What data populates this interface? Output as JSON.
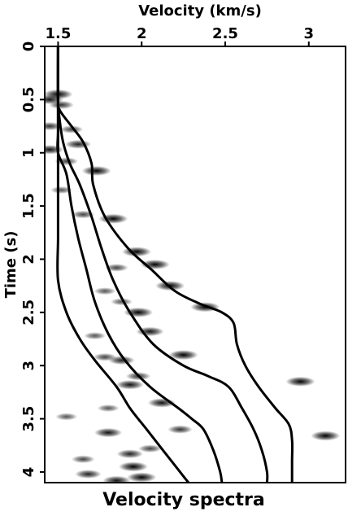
{
  "chart_data": {
    "type": "heatmap",
    "title": "Velocity spectra",
    "xlabel": "Velocity (km/s)",
    "ylabel": "Time (s)",
    "x_axis_position": "top",
    "y_axis_inverted": true,
    "xlim": [
      1.42,
      3.22
    ],
    "ylim": [
      0,
      4.1
    ],
    "xticks": [
      1.5,
      2,
      2.5,
      3
    ],
    "xtick_labels": [
      "1.5",
      "2",
      "2.5",
      "3"
    ],
    "yticks": [
      0,
      0.5,
      1,
      1.5,
      2,
      2.5,
      3,
      3.5,
      4
    ],
    "ytick_labels": [
      "0",
      "0.5",
      "1",
      "1.5",
      "2",
      "2.5",
      "3",
      "3.5",
      "4"
    ],
    "grid": false,
    "colormap": "white-to-black (semblance)",
    "semblance_peaks": [
      {
        "t": 0.45,
        "v": 1.5,
        "amp": 1.0
      },
      {
        "t": 0.5,
        "v": 1.45,
        "amp": 0.9
      },
      {
        "t": 0.55,
        "v": 1.52,
        "amp": 0.7
      },
      {
        "t": 0.75,
        "v": 1.45,
        "amp": 0.7
      },
      {
        "t": 0.78,
        "v": 1.58,
        "amp": 0.6
      },
      {
        "t": 0.92,
        "v": 1.62,
        "amp": 0.8
      },
      {
        "t": 0.97,
        "v": 1.45,
        "amp": 0.9
      },
      {
        "t": 1.08,
        "v": 1.55,
        "amp": 0.6
      },
      {
        "t": 1.17,
        "v": 1.73,
        "amp": 1.0
      },
      {
        "t": 1.35,
        "v": 1.52,
        "amp": 0.5
      },
      {
        "t": 1.58,
        "v": 1.65,
        "amp": 0.6
      },
      {
        "t": 1.62,
        "v": 1.83,
        "amp": 1.0
      },
      {
        "t": 1.93,
        "v": 1.97,
        "amp": 1.0
      },
      {
        "t": 2.05,
        "v": 2.08,
        "amp": 1.0
      },
      {
        "t": 2.08,
        "v": 1.85,
        "amp": 0.6
      },
      {
        "t": 2.25,
        "v": 2.17,
        "amp": 1.0
      },
      {
        "t": 2.3,
        "v": 1.78,
        "amp": 0.5
      },
      {
        "t": 2.4,
        "v": 1.88,
        "amp": 0.5
      },
      {
        "t": 2.45,
        "v": 2.38,
        "amp": 1.0
      },
      {
        "t": 2.5,
        "v": 1.98,
        "amp": 1.0
      },
      {
        "t": 2.68,
        "v": 2.05,
        "amp": 0.9
      },
      {
        "t": 2.72,
        "v": 1.72,
        "amp": 0.5
      },
      {
        "t": 2.9,
        "v": 2.25,
        "amp": 1.0
      },
      {
        "t": 2.92,
        "v": 1.78,
        "amp": 0.6
      },
      {
        "t": 2.95,
        "v": 1.88,
        "amp": 0.8
      },
      {
        "t": 3.1,
        "v": 1.98,
        "amp": 0.7
      },
      {
        "t": 3.15,
        "v": 2.95,
        "amp": 1.0
      },
      {
        "t": 3.18,
        "v": 1.93,
        "amp": 0.9
      },
      {
        "t": 3.35,
        "v": 2.12,
        "amp": 0.9
      },
      {
        "t": 3.4,
        "v": 1.8,
        "amp": 0.5
      },
      {
        "t": 3.48,
        "v": 1.55,
        "amp": 0.5
      },
      {
        "t": 3.6,
        "v": 2.23,
        "amp": 0.7
      },
      {
        "t": 3.63,
        "v": 1.8,
        "amp": 0.9
      },
      {
        "t": 3.66,
        "v": 3.1,
        "amp": 1.0
      },
      {
        "t": 3.78,
        "v": 2.05,
        "amp": 0.6
      },
      {
        "t": 3.83,
        "v": 1.93,
        "amp": 0.8
      },
      {
        "t": 3.88,
        "v": 1.65,
        "amp": 0.6
      },
      {
        "t": 3.95,
        "v": 1.95,
        "amp": 1.0
      },
      {
        "t": 4.02,
        "v": 1.68,
        "amp": 0.8
      },
      {
        "t": 4.05,
        "v": 2.0,
        "amp": 1.0
      },
      {
        "t": 4.08,
        "v": 1.85,
        "amp": 0.9
      }
    ],
    "series": [
      {
        "points": [
          [
            0,
            1.5
          ],
          [
            0.5,
            1.5
          ],
          [
            1.0,
            1.5
          ],
          [
            1.4,
            1.5
          ],
          [
            1.8,
            1.5
          ],
          [
            2.2,
            1.5
          ],
          [
            2.5,
            1.55
          ],
          [
            2.75,
            1.63
          ],
          [
            2.95,
            1.72
          ],
          [
            3.2,
            1.85
          ],
          [
            3.4,
            1.93
          ],
          [
            3.6,
            2.03
          ],
          [
            3.8,
            2.13
          ],
          [
            4.0,
            2.23
          ],
          [
            4.1,
            2.28
          ]
        ]
      },
      {
        "points": [
          [
            0,
            1.5
          ],
          [
            0.5,
            1.5
          ],
          [
            0.8,
            1.5
          ],
          [
            1.0,
            1.5
          ],
          [
            1.2,
            1.55
          ],
          [
            1.5,
            1.58
          ],
          [
            1.8,
            1.62
          ],
          [
            2.1,
            1.67
          ],
          [
            2.4,
            1.72
          ],
          [
            2.7,
            1.8
          ],
          [
            2.95,
            1.9
          ],
          [
            3.2,
            2.05
          ],
          [
            3.4,
            2.22
          ],
          [
            3.5,
            2.3
          ],
          [
            3.6,
            2.37
          ],
          [
            3.8,
            2.43
          ],
          [
            4.0,
            2.47
          ],
          [
            4.1,
            2.48
          ]
        ]
      },
      {
        "points": [
          [
            0,
            1.5
          ],
          [
            0.5,
            1.5
          ],
          [
            0.7,
            1.51
          ],
          [
            0.9,
            1.53
          ],
          [
            1.1,
            1.57
          ],
          [
            1.3,
            1.63
          ],
          [
            1.6,
            1.7
          ],
          [
            1.9,
            1.76
          ],
          [
            2.2,
            1.83
          ],
          [
            2.5,
            1.93
          ],
          [
            2.8,
            2.07
          ],
          [
            3.0,
            2.25
          ],
          [
            3.1,
            2.4
          ],
          [
            3.2,
            2.52
          ],
          [
            3.4,
            2.6
          ],
          [
            3.6,
            2.67
          ],
          [
            3.8,
            2.72
          ],
          [
            4.0,
            2.75
          ],
          [
            4.1,
            2.75
          ]
        ]
      },
      {
        "points": [
          [
            0,
            1.5
          ],
          [
            0.5,
            1.5
          ],
          [
            0.6,
            1.51
          ],
          [
            0.75,
            1.58
          ],
          [
            0.9,
            1.65
          ],
          [
            1.1,
            1.7
          ],
          [
            1.3,
            1.71
          ],
          [
            1.6,
            1.78
          ],
          [
            1.9,
            1.92
          ],
          [
            2.1,
            2.06
          ],
          [
            2.3,
            2.2
          ],
          [
            2.42,
            2.35
          ],
          [
            2.5,
            2.48
          ],
          [
            2.6,
            2.55
          ],
          [
            2.8,
            2.57
          ],
          [
            3.0,
            2.62
          ],
          [
            3.2,
            2.7
          ],
          [
            3.4,
            2.8
          ],
          [
            3.55,
            2.88
          ],
          [
            3.7,
            2.9
          ],
          [
            3.9,
            2.9
          ],
          [
            4.1,
            2.9
          ]
        ]
      }
    ]
  }
}
